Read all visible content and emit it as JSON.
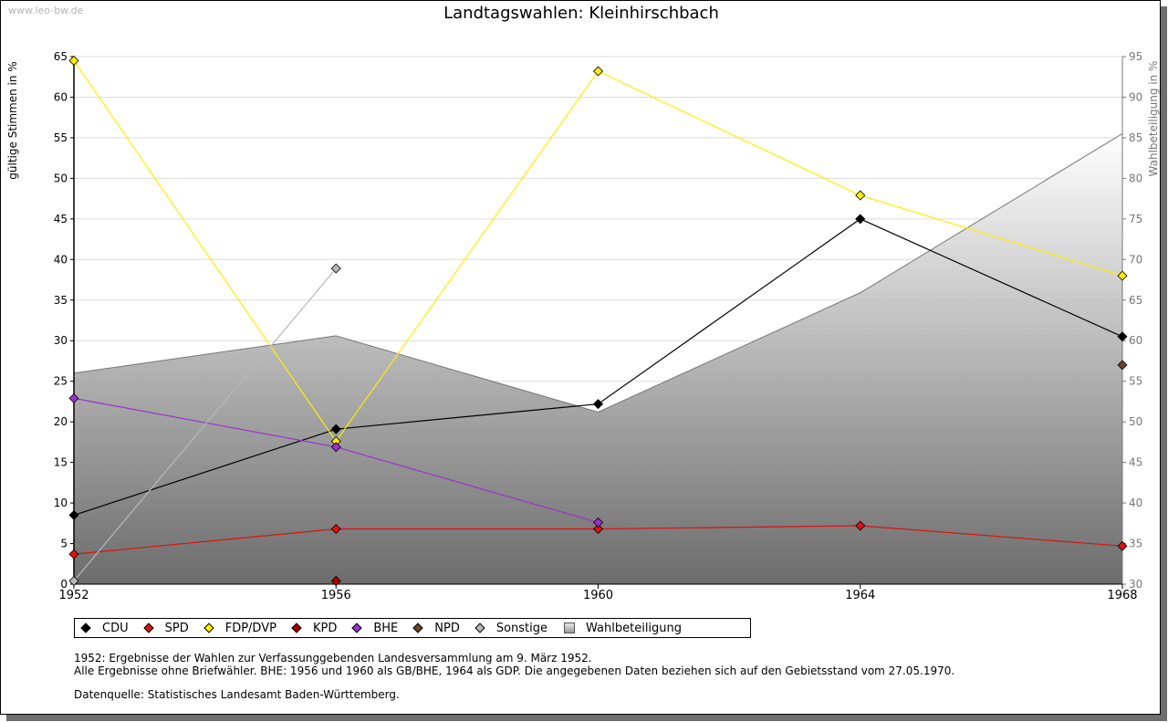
{
  "watermark": "www.leo-bw.de",
  "chart_data": {
    "type": "line",
    "title": "Landtagswahlen: Kleinhirschbach",
    "x": [
      1952,
      1956,
      1960,
      1964,
      1968
    ],
    "xticks": [
      "1952",
      "1956",
      "1960",
      "1964",
      "1968"
    ],
    "ylabel": "gültige Stimmen in %",
    "ylim": [
      0,
      65
    ],
    "yticks": [
      0,
      5,
      10,
      15,
      20,
      25,
      30,
      35,
      40,
      45,
      50,
      55,
      60,
      65
    ],
    "y2label": "Wahlbeteiligung in %",
    "y2lim": [
      30,
      95
    ],
    "y2ticks": [
      30,
      35,
      40,
      45,
      50,
      55,
      60,
      65,
      70,
      75,
      80,
      85,
      90,
      95
    ],
    "grid": true,
    "series": [
      {
        "name": "CDU",
        "color": "#000000",
        "values": [
          8.5,
          19.1,
          22.2,
          45.0,
          30.5
        ]
      },
      {
        "name": "SPD",
        "color": "#dd1111",
        "values": [
          3.7,
          6.8,
          6.8,
          7.2,
          4.7
        ]
      },
      {
        "name": "FDP/DVP",
        "color": "#ffee00",
        "values": [
          64.5,
          17.6,
          63.2,
          47.9,
          38.0
        ]
      },
      {
        "name": "KPD",
        "color": "#aa0000",
        "values": [
          null,
          0.4,
          null,
          null,
          null
        ]
      },
      {
        "name": "BHE",
        "color": "#9933cc",
        "values": [
          22.9,
          16.9,
          7.6,
          null,
          null
        ]
      },
      {
        "name": "NPD",
        "color": "#664433",
        "values": [
          null,
          null,
          null,
          null,
          27.0
        ]
      },
      {
        "name": "Sonstige",
        "color": "#b8b8b8",
        "values": [
          0.4,
          38.9,
          null,
          null,
          null
        ]
      }
    ],
    "turnout": {
      "name": "Wahlbeteiligung",
      "values": [
        56.0,
        60.6,
        51.2,
        65.9,
        85.5
      ]
    }
  },
  "legend": [
    {
      "label": "CDU",
      "color": "#000000",
      "shape": "diamond"
    },
    {
      "label": "SPD",
      "color": "#dd1111",
      "shape": "diamond"
    },
    {
      "label": "FDP/DVP",
      "color": "#ffee00",
      "shape": "diamond"
    },
    {
      "label": "KPD",
      "color": "#aa0000",
      "shape": "diamond"
    },
    {
      "label": "BHE",
      "color": "#9933cc",
      "shape": "diamond"
    },
    {
      "label": "NPD",
      "color": "#664433",
      "shape": "diamond"
    },
    {
      "label": "Sonstige",
      "color": "#b8b8b8",
      "shape": "diamond"
    },
    {
      "label": "Wahlbeteiligung",
      "color": "#aaaaaa",
      "shape": "square"
    }
  ],
  "notes": {
    "line1": "1952: Ergebnisse der Wahlen zur Verfassunggebenden Landesversammlung am 9. März 1952.",
    "line2": "Alle Ergebnisse ohne Briefwähler. BHE: 1956 und 1960 als GB/BHE, 1964 als GDP. Die angegebenen Daten beziehen sich auf den Gebietsstand vom 27.05.1970.",
    "source": "Datenquelle: Statistisches Landesamt Baden-Württemberg."
  }
}
